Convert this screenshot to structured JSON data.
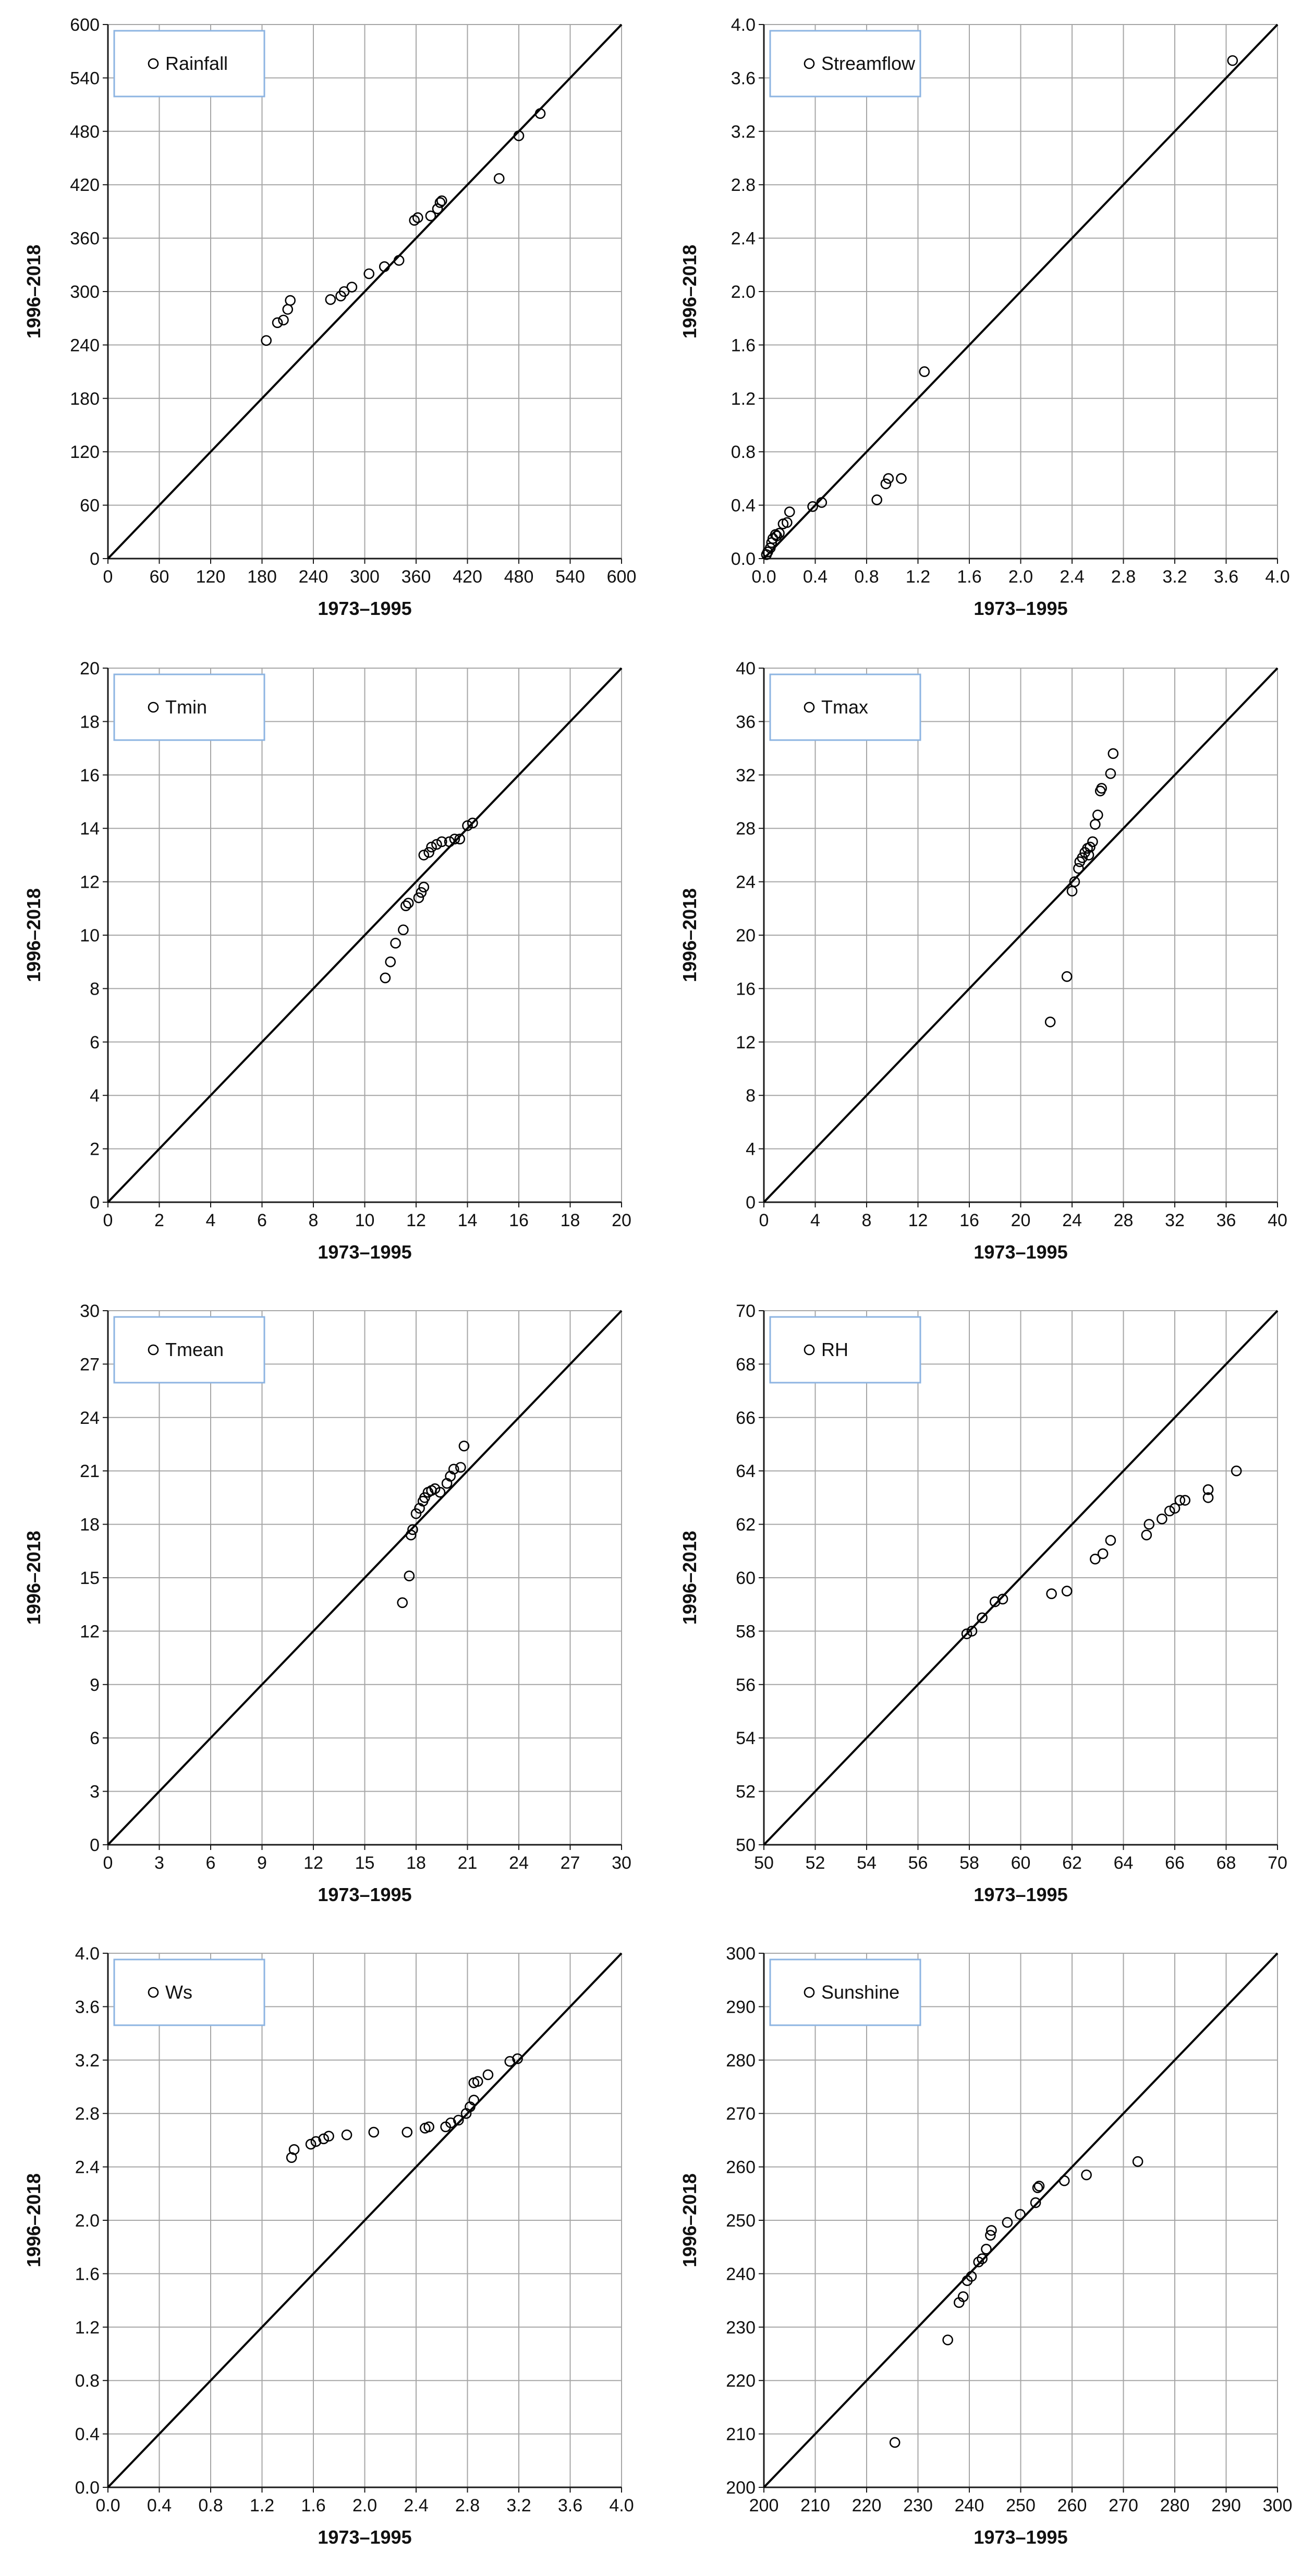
{
  "style": {
    "grid_color": "#a6a6a6",
    "axis_color": "#1a1a1a",
    "marker_color": "#000000",
    "legend_border_color": "#8db4e2",
    "background": "#ffffff"
  },
  "chart_data": [
    {
      "id": "rainfall",
      "type": "scatter",
      "legend": "Rainfall",
      "legend_position": "top-left",
      "xlabel": "1973–1995",
      "ylabel": "1996–2018",
      "xlim": [
        0,
        600
      ],
      "ylim": [
        0,
        600
      ],
      "xticks": [
        "0",
        "60",
        "120",
        "180",
        "240",
        "300",
        "360",
        "420",
        "480",
        "540",
        "600"
      ],
      "yticks": [
        "0",
        "60",
        "120",
        "180",
        "240",
        "300",
        "360",
        "420",
        "480",
        "540",
        "600"
      ],
      "reference_line": "1:1",
      "x": [
        185,
        198,
        205,
        210,
        213,
        260,
        272,
        276,
        285,
        305,
        323,
        340,
        358,
        362,
        377,
        385,
        388,
        390,
        457,
        480,
        505
      ],
      "y": [
        245,
        265,
        268,
        280,
        290,
        291,
        295,
        300,
        305,
        320,
        328,
        335,
        380,
        383,
        385,
        393,
        400,
        402,
        427,
        475,
        500
      ]
    },
    {
      "id": "streamflow",
      "type": "scatter",
      "legend": "Streamflow",
      "legend_position": "top-left",
      "xlabel": "1973–1995",
      "ylabel": "1996–2018",
      "xlim": [
        0,
        4
      ],
      "ylim": [
        0,
        4
      ],
      "xticks": [
        "0.0",
        "0.4",
        "0.8",
        "1.2",
        "1.6",
        "2.0",
        "2.4",
        "2.8",
        "3.2",
        "3.6",
        "4.0"
      ],
      "yticks": [
        "0.0",
        "0.4",
        "0.8",
        "1.2",
        "1.6",
        "2.0",
        "2.4",
        "2.8",
        "3.2",
        "3.6",
        "4.0"
      ],
      "reference_line": "1:1",
      "x": [
        0.02,
        0.03,
        0.05,
        0.06,
        0.07,
        0.09,
        0.1,
        0.12,
        0.15,
        0.18,
        0.2,
        0.38,
        0.45,
        0.88,
        0.95,
        0.97,
        1.07,
        1.25,
        3.65
      ],
      "y": [
        0.03,
        0.05,
        0.08,
        0.12,
        0.15,
        0.18,
        0.17,
        0.19,
        0.26,
        0.27,
        0.35,
        0.39,
        0.42,
        0.44,
        0.56,
        0.6,
        0.6,
        1.4,
        3.73
      ]
    },
    {
      "id": "tmin",
      "type": "scatter",
      "legend": "Tmin",
      "legend_position": "top-left",
      "xlabel": "1973–1995",
      "ylabel": "1996–2018",
      "xlim": [
        0,
        20
      ],
      "ylim": [
        0,
        20
      ],
      "xticks": [
        "0",
        "2",
        "4",
        "6",
        "8",
        "10",
        "12",
        "14",
        "16",
        "18",
        "20"
      ],
      "yticks": [
        "0",
        "2",
        "4",
        "6",
        "8",
        "10",
        "12",
        "14",
        "16",
        "18",
        "20"
      ],
      "reference_line": "1:1",
      "x": [
        10.8,
        11.0,
        11.2,
        11.5,
        11.6,
        11.7,
        12.1,
        12.2,
        12.3,
        12.3,
        12.5,
        12.6,
        12.8,
        13.0,
        13.3,
        13.5,
        13.7,
        14.0,
        14.2
      ],
      "y": [
        8.4,
        9.0,
        9.7,
        10.2,
        11.1,
        11.2,
        11.4,
        11.6,
        11.8,
        13.0,
        13.1,
        13.3,
        13.4,
        13.5,
        13.5,
        13.6,
        13.6,
        14.1,
        14.2
      ]
    },
    {
      "id": "tmax",
      "type": "scatter",
      "legend": "Tmax",
      "legend_position": "top-left",
      "xlabel": "1973–1995",
      "ylabel": "1996–2018",
      "xlim": [
        0,
        40
      ],
      "ylim": [
        0,
        40
      ],
      "xticks": [
        "0",
        "4",
        "8",
        "12",
        "16",
        "20",
        "24",
        "28",
        "32",
        "36",
        "40"
      ],
      "yticks": [
        "0",
        "4",
        "8",
        "12",
        "16",
        "20",
        "24",
        "28",
        "32",
        "36",
        "40"
      ],
      "reference_line": "1:1",
      "x": [
        22.3,
        23.6,
        24.0,
        24.2,
        24.5,
        24.6,
        24.8,
        25.0,
        25.2,
        25.3,
        25.4,
        25.6,
        25.8,
        26.0,
        26.2,
        26.3,
        27.0,
        27.2
      ],
      "y": [
        13.5,
        16.9,
        23.3,
        24.0,
        25.0,
        25.5,
        25.8,
        26.2,
        26.5,
        26.0,
        26.6,
        27.0,
        28.3,
        29.0,
        30.8,
        31.0,
        32.1,
        33.6
      ]
    },
    {
      "id": "tmean",
      "type": "scatter",
      "legend": "Tmean",
      "legend_position": "top-left",
      "xlabel": "1973–1995",
      "ylabel": "1996–2018",
      "xlim": [
        0,
        30
      ],
      "ylim": [
        0,
        30
      ],
      "xticks": [
        "0",
        "3",
        "6",
        "9",
        "12",
        "15",
        "18",
        "21",
        "24",
        "27",
        "30"
      ],
      "yticks": [
        "0",
        "3",
        "6",
        "9",
        "12",
        "15",
        "18",
        "21",
        "24",
        "27",
        "30"
      ],
      "reference_line": "1:1",
      "x": [
        17.2,
        17.6,
        17.7,
        17.8,
        18.0,
        18.2,
        18.4,
        18.5,
        18.7,
        18.9,
        19.1,
        19.4,
        19.8,
        20.0,
        20.2,
        20.6,
        20.8
      ],
      "y": [
        13.6,
        15.1,
        17.4,
        17.7,
        18.6,
        18.9,
        19.3,
        19.5,
        19.8,
        19.9,
        20.0,
        19.8,
        20.3,
        20.7,
        21.1,
        21.2,
        22.4
      ]
    },
    {
      "id": "rh",
      "type": "scatter",
      "legend": "RH",
      "legend_position": "top-left",
      "xlabel": "1973–1995",
      "ylabel": "1996–2018",
      "xlim": [
        50,
        70
      ],
      "ylim": [
        50,
        70
      ],
      "xticks": [
        "50",
        "52",
        "54",
        "56",
        "58",
        "60",
        "62",
        "64",
        "66",
        "68",
        "70"
      ],
      "yticks": [
        "50",
        "52",
        "54",
        "56",
        "58",
        "60",
        "62",
        "64",
        "66",
        "68",
        "70"
      ],
      "reference_line": "1:1",
      "x": [
        57.9,
        58.1,
        58.5,
        59.0,
        59.3,
        61.2,
        61.8,
        62.9,
        63.2,
        63.5,
        64.9,
        65.0,
        65.5,
        65.8,
        66.0,
        66.2,
        66.4,
        67.3,
        67.3,
        68.4
      ],
      "y": [
        57.9,
        58.0,
        58.5,
        59.1,
        59.2,
        59.4,
        59.5,
        60.7,
        60.9,
        61.4,
        61.6,
        62.0,
        62.2,
        62.5,
        62.6,
        62.9,
        62.9,
        63.0,
        63.3,
        64.0
      ]
    },
    {
      "id": "ws",
      "type": "scatter",
      "legend": "Ws",
      "legend_position": "top-left",
      "xlabel": "1973–1995",
      "ylabel": "1996–2018",
      "xlim": [
        0,
        4
      ],
      "ylim": [
        0,
        4
      ],
      "xticks": [
        "0.0",
        "0.4",
        "0.8",
        "1.2",
        "1.6",
        "2.0",
        "2.4",
        "2.8",
        "3.2",
        "3.6",
        "4.0"
      ],
      "yticks": [
        "0.0",
        "0.4",
        "0.8",
        "1.2",
        "1.6",
        "2.0",
        "2.4",
        "2.8",
        "3.2",
        "3.6",
        "4.0"
      ],
      "reference_line": "1:1",
      "x": [
        1.43,
        1.45,
        1.58,
        1.62,
        1.68,
        1.72,
        1.86,
        2.07,
        2.33,
        2.47,
        2.5,
        2.63,
        2.67,
        2.73,
        2.79,
        2.82,
        2.85,
        2.85,
        2.88,
        2.96,
        3.13,
        3.19
      ],
      "y": [
        2.47,
        2.53,
        2.57,
        2.59,
        2.61,
        2.63,
        2.64,
        2.66,
        2.66,
        2.69,
        2.7,
        2.7,
        2.73,
        2.75,
        2.8,
        2.85,
        2.9,
        3.03,
        3.04,
        3.09,
        3.19,
        3.21
      ]
    },
    {
      "id": "sunshine",
      "type": "scatter",
      "legend": "Sunshine",
      "legend_position": "top-left",
      "xlabel": "1973–1995",
      "ylabel": "1996–2018",
      "xlim": [
        200,
        300
      ],
      "ylim": [
        200,
        300
      ],
      "xticks": [
        "200",
        "210",
        "220",
        "230",
        "240",
        "250",
        "260",
        "270",
        "280",
        "290",
        "300"
      ],
      "yticks": [
        "200",
        "210",
        "220",
        "230",
        "240",
        "250",
        "260",
        "270",
        "280",
        "290",
        "300"
      ],
      "reference_line": "1:1",
      "x": [
        225.5,
        235.8,
        238.0,
        238.8,
        239.6,
        240.4,
        241.8,
        242.5,
        243.3,
        244.1,
        244.3,
        247.4,
        249.9,
        252.9,
        253.3,
        253.6,
        258.5,
        262.8,
        272.8
      ],
      "y": [
        208.4,
        227.6,
        234.6,
        235.7,
        238.7,
        239.5,
        242.2,
        242.8,
        244.6,
        247.2,
        248.1,
        249.6,
        251.1,
        253.3,
        256.1,
        256.4,
        257.4,
        258.5,
        261.0
      ]
    }
  ]
}
